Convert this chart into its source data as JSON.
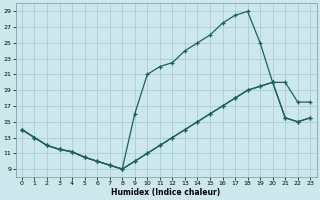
{
  "title": "",
  "xlabel": "Humidex (Indice chaleur)",
  "bg_color": "#cce8ec",
  "grid_color": "#aacdd4",
  "line_color": "#1a6060",
  "xlim": [
    -0.5,
    23.5
  ],
  "ylim": [
    8,
    30
  ],
  "xticks": [
    0,
    1,
    2,
    3,
    4,
    5,
    6,
    7,
    8,
    9,
    10,
    11,
    12,
    13,
    14,
    15,
    16,
    17,
    18,
    19,
    20,
    21,
    22,
    23
  ],
  "yticks": [
    9,
    11,
    13,
    15,
    17,
    19,
    21,
    23,
    25,
    27,
    29
  ],
  "line1_x": [
    0,
    1,
    2,
    3,
    4,
    5,
    6,
    7,
    8,
    9,
    10,
    11,
    12,
    13,
    14,
    15,
    16,
    17,
    18,
    19,
    20,
    21,
    22,
    23
  ],
  "line1_y": [
    14,
    13,
    12,
    11.5,
    11.2,
    10.5,
    10,
    9.5,
    9,
    10,
    11,
    12,
    13,
    14,
    15,
    16,
    17,
    18,
    19,
    19.5,
    20,
    15.5,
    15,
    15.5
  ],
  "line2_x": [
    0,
    1,
    2,
    3,
    4,
    5,
    6,
    7,
    8,
    9,
    10,
    11,
    12,
    13,
    14,
    15,
    16,
    17,
    18,
    19,
    20,
    21,
    22,
    23
  ],
  "line2_y": [
    14,
    13,
    12,
    11.5,
    11.2,
    10.5,
    10,
    9.5,
    9,
    16,
    21,
    22,
    22.5,
    24,
    25,
    26,
    27.5,
    28.5,
    29,
    25,
    20,
    20,
    17.5,
    17.5
  ],
  "line3_x": [
    0,
    1,
    2,
    3,
    4,
    5,
    6,
    7,
    8,
    9,
    10,
    11,
    12,
    13,
    14,
    15,
    16,
    17,
    18,
    19,
    20,
    21,
    22,
    23
  ],
  "line3_y": [
    14,
    13,
    12,
    11.5,
    11.2,
    10.5,
    10,
    9.5,
    9,
    10,
    11,
    12,
    13,
    14,
    15,
    16,
    17,
    18,
    19,
    19.5,
    20,
    15.5,
    15,
    15.5
  ]
}
